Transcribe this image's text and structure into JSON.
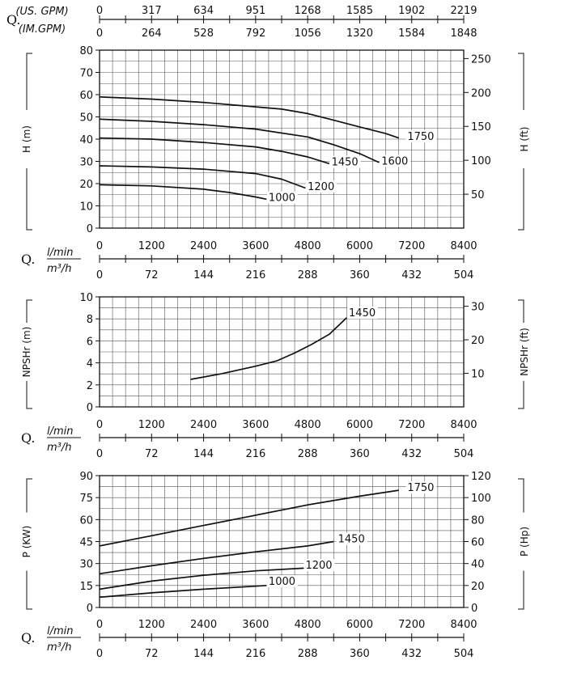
{
  "top_axis": {
    "q_label": "Q.",
    "us_unit": "(US. GPM)",
    "im_unit": "(IM.GPM)",
    "us_ticks": [
      "0",
      "317",
      "634",
      "951",
      "1268",
      "1585",
      "1902",
      "2219"
    ],
    "im_ticks": [
      "0",
      "264",
      "528",
      "792",
      "1056",
      "1320",
      "1584",
      "1848"
    ]
  },
  "flow_axis": {
    "q_label": "Q.",
    "lmin_unit": "l/min",
    "m3h_unit": "m³/h",
    "lmin_ticks": [
      "0",
      "1200",
      "2400",
      "3600",
      "4800",
      "6000",
      "7200",
      "8400"
    ],
    "m3h_ticks": [
      "0",
      "72",
      "144",
      "216",
      "288",
      "360",
      "432",
      "504"
    ]
  },
  "chart_data": [
    {
      "type": "line",
      "ylabel": "H (m)",
      "ylabel_right": "H (ft)",
      "xlim": [
        0,
        8400
      ],
      "ylim": [
        0,
        80
      ],
      "yticks": [
        0,
        10,
        20,
        30,
        40,
        50,
        60,
        70,
        80
      ],
      "yticks_right": [
        50,
        100,
        150,
        200,
        250
      ],
      "grid": true,
      "series": [
        {
          "name": "1750",
          "x": [
            0,
            1200,
            2400,
            3600,
            4200,
            4800,
            5400,
            6000,
            6600,
            6900
          ],
          "y": [
            59,
            58,
            56.5,
            54.5,
            53.5,
            51.5,
            48.5,
            45.5,
            42.5,
            40.5
          ],
          "label_x": 7100,
          "label_y": 40
        },
        {
          "name": "1600",
          "x": [
            0,
            1200,
            2400,
            3600,
            4800,
            5400,
            6000,
            6450
          ],
          "y": [
            49,
            48,
            46.5,
            44.5,
            41,
            37.5,
            33.5,
            29.5
          ],
          "label_x": 6500,
          "label_y": 29
        },
        {
          "name": "1450",
          "x": [
            0,
            1200,
            2400,
            3600,
            4200,
            4800,
            5300
          ],
          "y": [
            40.5,
            40,
            38.5,
            36.5,
            34.5,
            32,
            29
          ],
          "label_x": 5350,
          "label_y": 28.5
        },
        {
          "name": "1200",
          "x": [
            0,
            1200,
            2400,
            3600,
            4200,
            4750
          ],
          "y": [
            28,
            27.5,
            26.5,
            24.5,
            22,
            18
          ],
          "label_x": 4800,
          "label_y": 17.5
        },
        {
          "name": "1000",
          "x": [
            0,
            1200,
            2400,
            3000,
            3600,
            3850
          ],
          "y": [
            19.5,
            19,
            17.5,
            16,
            14,
            13
          ],
          "label_x": 3900,
          "label_y": 12.5
        }
      ]
    },
    {
      "type": "line",
      "ylabel": "NPSHr (m)",
      "ylabel_right": "NPSHr (ft)",
      "xlim": [
        0,
        8400
      ],
      "ylim": [
        0,
        10
      ],
      "yticks": [
        0,
        2,
        4,
        6,
        8,
        10
      ],
      "yticks_right": [
        10,
        20,
        30
      ],
      "grid": true,
      "series": [
        {
          "name": "1450",
          "x": [
            2100,
            2800,
            3600,
            4100,
            4500,
            4900,
            5300,
            5700
          ],
          "y": [
            2.5,
            3,
            3.7,
            4.2,
            4.9,
            5.7,
            6.6,
            8.1
          ],
          "label_x": 5750,
          "label_y": 8.3
        }
      ]
    },
    {
      "type": "line",
      "ylabel": "P (KW)",
      "ylabel_right": "P (Hp)",
      "xlim": [
        0,
        8400
      ],
      "ylim": [
        0,
        90
      ],
      "yticks": [
        0,
        15,
        30,
        45,
        60,
        75,
        90
      ],
      "yticks_right": [
        0,
        20,
        40,
        60,
        80,
        100,
        120
      ],
      "grid": true,
      "series": [
        {
          "name": "1750",
          "x": [
            0,
            1200,
            2400,
            3600,
            4800,
            6000,
            6900
          ],
          "y": [
            42,
            49,
            56,
            63,
            70,
            76,
            80
          ],
          "label_x": 7100,
          "label_y": 80
        },
        {
          "name": "1450",
          "x": [
            0,
            1200,
            2400,
            3600,
            4800,
            5400
          ],
          "y": [
            23,
            28.5,
            33.5,
            38,
            42,
            45
          ],
          "label_x": 5500,
          "label_y": 45
        },
        {
          "name": "1200",
          "x": [
            0,
            1200,
            2400,
            3600,
            4800
          ],
          "y": [
            12.5,
            18,
            22,
            25,
            27
          ],
          "label_x": 4750,
          "label_y": 27
        },
        {
          "name": "1000",
          "x": [
            0,
            1200,
            2400,
            3600,
            3850
          ],
          "y": [
            7,
            10,
            12.5,
            14.5,
            15
          ],
          "label_x": 3900,
          "label_y": 16
        }
      ]
    }
  ]
}
